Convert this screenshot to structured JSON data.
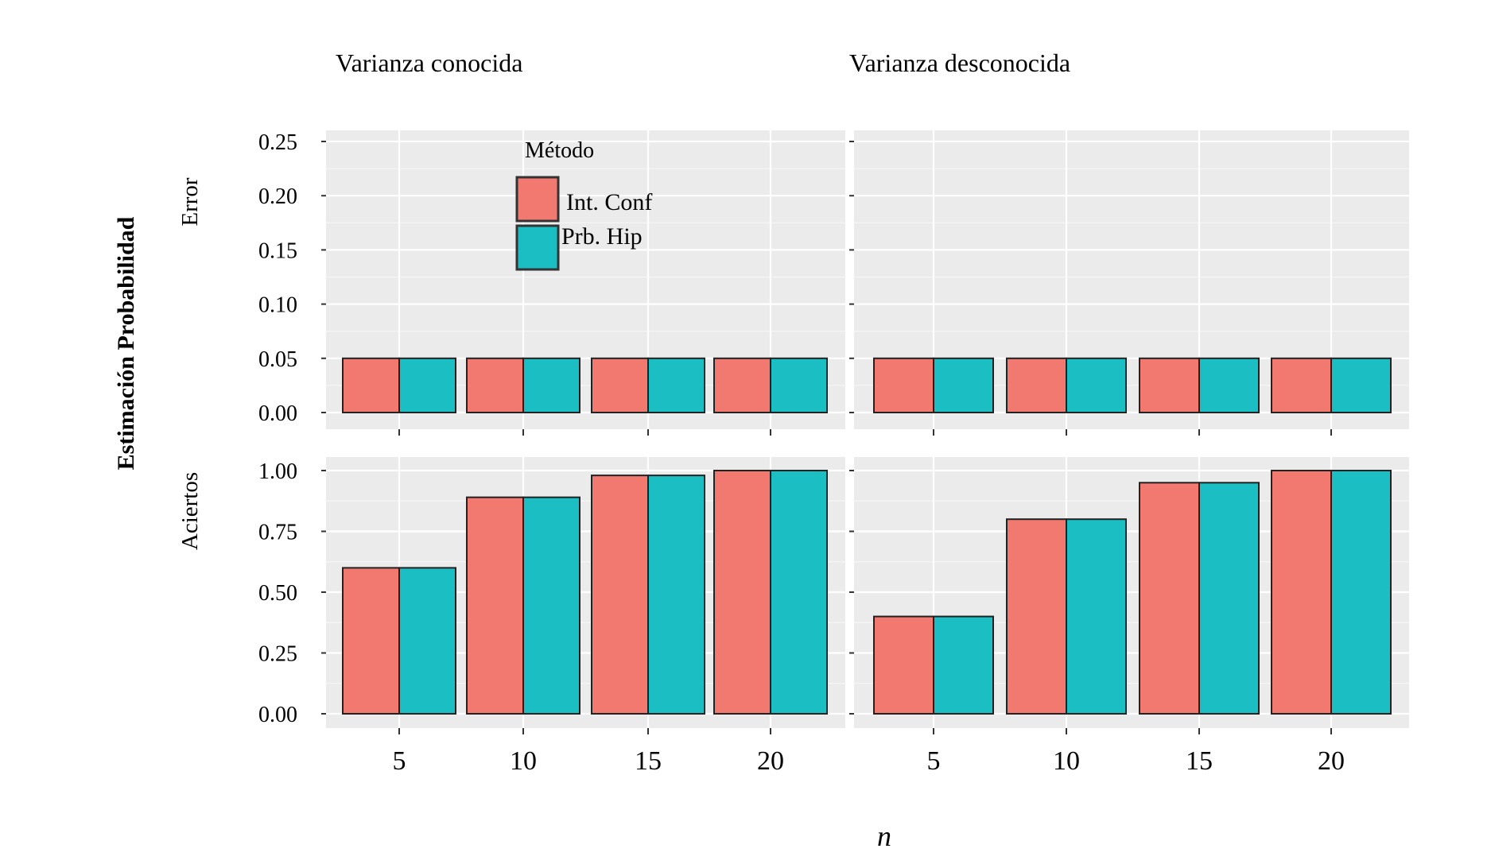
{
  "chart_data": {
    "type": "bar",
    "layout": "facet grid, 2 rows x 2 columns, grouped bars",
    "global_ylabel": "Estimación Probabilidad",
    "xlabel": "n",
    "column_titles": [
      "Varianza conocida",
      "Varianza desconocida"
    ],
    "row_titles": [
      "Error",
      "Aciertos"
    ],
    "categories": [
      "5",
      "10",
      "15",
      "20"
    ],
    "legend": {
      "title": "Método",
      "placement": "inside top panel of left column",
      "entries": [
        {
          "label": "Int. Conf",
          "color": "#f27970"
        },
        {
          "label": "Prb. Hip",
          "color": "#1bbec3"
        }
      ]
    },
    "panel_background": "#ebebeb",
    "grid": true,
    "rows": [
      {
        "title": "Error",
        "ylim": [
          0,
          0.25
        ],
        "ytick_labels": [
          "0.00",
          "0.05",
          "0.10",
          "0.15",
          "0.20",
          "0.25"
        ],
        "yticks": [
          0,
          0.05,
          0.1,
          0.15,
          0.2,
          0.25
        ],
        "panels": [
          {
            "column": "Varianza conocida",
            "series": [
              {
                "name": "Int. Conf",
                "values": [
                  0.05,
                  0.05,
                  0.05,
                  0.05
                ]
              },
              {
                "name": "Prb. Hip",
                "values": [
                  0.05,
                  0.05,
                  0.05,
                  0.05
                ]
              }
            ]
          },
          {
            "column": "Varianza desconocida",
            "series": [
              {
                "name": "Int. Conf",
                "values": [
                  0.05,
                  0.05,
                  0.05,
                  0.05
                ]
              },
              {
                "name": "Prb. Hip",
                "values": [
                  0.05,
                  0.05,
                  0.05,
                  0.05
                ]
              }
            ]
          }
        ]
      },
      {
        "title": "Aciertos",
        "ylim": [
          0,
          1.0
        ],
        "ytick_labels": [
          "0.00",
          "0.25",
          "0.50",
          "0.75",
          "1.00"
        ],
        "yticks": [
          0,
          0.25,
          0.5,
          0.75,
          1.0
        ],
        "panels": [
          {
            "column": "Varianza conocida",
            "series": [
              {
                "name": "Int. Conf",
                "values": [
                  0.6,
                  0.89,
                  0.98,
                  1.0
                ]
              },
              {
                "name": "Prb. Hip",
                "values": [
                  0.6,
                  0.89,
                  0.98,
                  1.0
                ]
              }
            ]
          },
          {
            "column": "Varianza desconocida",
            "series": [
              {
                "name": "Int. Conf",
                "values": [
                  0.4,
                  0.8,
                  0.95,
                  1.0
                ]
              },
              {
                "name": "Prb. Hip",
                "values": [
                  0.4,
                  0.8,
                  0.95,
                  1.0
                ]
              }
            ]
          }
        ]
      }
    ]
  }
}
